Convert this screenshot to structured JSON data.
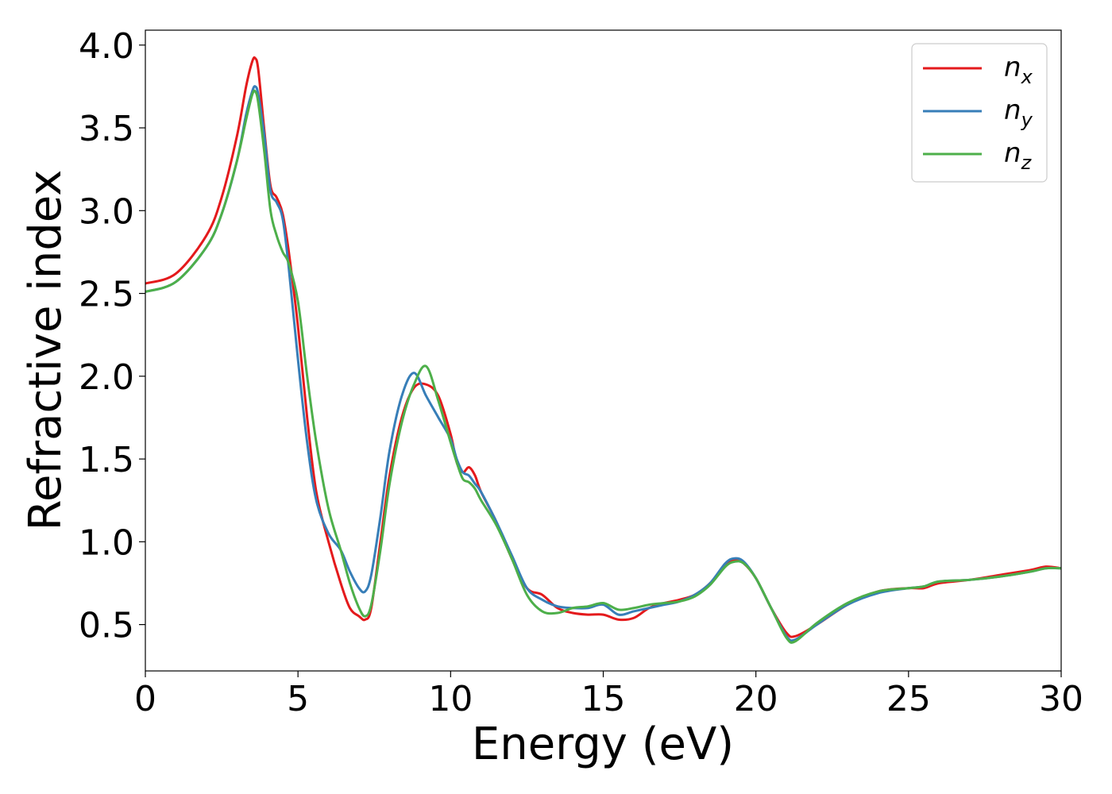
{
  "chart_data": {
    "type": "line",
    "xlabel": "Energy (eV)",
    "ylabel": "Refractive index",
    "xlim": [
      0,
      30
    ],
    "ylim": [
      0.22,
      4.09
    ],
    "xticks": [
      0,
      5,
      10,
      15,
      20,
      25,
      30
    ],
    "xtick_labels": [
      "0",
      "5",
      "10",
      "15",
      "20",
      "25",
      "30"
    ],
    "yticks": [
      0.5,
      1.0,
      1.5,
      2.0,
      2.5,
      3.0,
      3.5,
      4.0
    ],
    "ytick_labels": [
      "0.5",
      "1.0",
      "1.5",
      "2.0",
      "2.5",
      "3.0",
      "3.5",
      "4.0"
    ],
    "grid": false,
    "legend": {
      "position": "top-right"
    },
    "series": [
      {
        "name": "n",
        "sub": "x",
        "color": "#e41a1c",
        "x": [
          0,
          1,
          2,
          2.5,
          3,
          3.3,
          3.5,
          3.6,
          3.7,
          3.9,
          4.1,
          4.3,
          4.5,
          4.7,
          5.0,
          5.3,
          5.6,
          6.0,
          6.4,
          6.7,
          7.0,
          7.2,
          7.4,
          7.7,
          8.0,
          8.4,
          8.8,
          9.2,
          9.6,
          10.0,
          10.2,
          10.4,
          10.6,
          10.8,
          11.0,
          11.5,
          12.0,
          12.5,
          13.0,
          13.5,
          14.0,
          14.5,
          15.0,
          15.5,
          16.0,
          16.5,
          17.0,
          17.5,
          18.0,
          18.5,
          19.0,
          19.3,
          19.6,
          20.0,
          20.5,
          21.0,
          21.3,
          22.0,
          23.0,
          24.0,
          25.0,
          25.5,
          26.0,
          27.0,
          28.0,
          29.0,
          29.5,
          30.0
        ],
        "y": [
          2.56,
          2.62,
          2.85,
          3.08,
          3.45,
          3.75,
          3.9,
          3.92,
          3.85,
          3.48,
          3.15,
          3.08,
          2.98,
          2.75,
          2.3,
          1.75,
          1.3,
          1.0,
          0.75,
          0.6,
          0.55,
          0.53,
          0.6,
          1.0,
          1.4,
          1.75,
          1.93,
          1.95,
          1.88,
          1.65,
          1.48,
          1.42,
          1.45,
          1.4,
          1.3,
          1.12,
          0.9,
          0.72,
          0.68,
          0.6,
          0.57,
          0.56,
          0.56,
          0.53,
          0.54,
          0.6,
          0.63,
          0.65,
          0.68,
          0.75,
          0.86,
          0.89,
          0.87,
          0.78,
          0.6,
          0.45,
          0.43,
          0.5,
          0.62,
          0.7,
          0.72,
          0.72,
          0.75,
          0.77,
          0.8,
          0.83,
          0.85,
          0.84
        ]
      },
      {
        "name": "n",
        "sub": "y",
        "color": "#377eb8",
        "x": [
          0,
          1,
          2,
          2.5,
          3,
          3.3,
          3.5,
          3.6,
          3.7,
          3.9,
          4.1,
          4.3,
          4.5,
          4.7,
          5.0,
          5.3,
          5.6,
          6.0,
          6.4,
          6.7,
          7.0,
          7.2,
          7.4,
          7.7,
          8.0,
          8.4,
          8.8,
          9.2,
          9.6,
          10.0,
          10.2,
          10.4,
          10.6,
          10.8,
          11.0,
          11.5,
          12.0,
          12.5,
          13.0,
          13.5,
          14.0,
          14.5,
          15.0,
          15.5,
          16.0,
          16.5,
          17.0,
          17.5,
          18.0,
          18.5,
          19.0,
          19.3,
          19.6,
          20.0,
          20.5,
          21.0,
          21.3,
          22.0,
          23.0,
          24.0,
          25.0,
          25.5,
          26.0,
          27.0,
          28.0,
          29.0,
          29.5,
          30.0
        ],
        "y": [
          2.51,
          2.57,
          2.78,
          2.98,
          3.3,
          3.58,
          3.72,
          3.75,
          3.7,
          3.45,
          3.12,
          3.05,
          2.95,
          2.65,
          2.1,
          1.6,
          1.25,
          1.05,
          0.95,
          0.82,
          0.72,
          0.7,
          0.8,
          1.15,
          1.55,
          1.88,
          2.02,
          1.88,
          1.75,
          1.62,
          1.5,
          1.42,
          1.4,
          1.35,
          1.3,
          1.12,
          0.92,
          0.72,
          0.65,
          0.61,
          0.6,
          0.6,
          0.62,
          0.56,
          0.58,
          0.6,
          0.62,
          0.64,
          0.68,
          0.75,
          0.87,
          0.9,
          0.88,
          0.78,
          0.6,
          0.43,
          0.41,
          0.5,
          0.62,
          0.69,
          0.72,
          0.73,
          0.76,
          0.77,
          0.79,
          0.82,
          0.84,
          0.84
        ]
      },
      {
        "name": "n",
        "sub": "z",
        "color": "#4daf4a",
        "x": [
          0,
          1,
          2,
          2.5,
          3,
          3.3,
          3.5,
          3.6,
          3.7,
          3.9,
          4.1,
          4.3,
          4.5,
          4.7,
          5.0,
          5.3,
          5.6,
          6.0,
          6.4,
          6.7,
          7.0,
          7.2,
          7.4,
          7.7,
          8.0,
          8.4,
          8.8,
          9.2,
          9.6,
          10.0,
          10.2,
          10.4,
          10.6,
          10.8,
          11.0,
          11.5,
          12.0,
          12.5,
          13.0,
          13.5,
          14.0,
          14.5,
          15.0,
          15.5,
          16.0,
          16.5,
          17.0,
          17.5,
          18.0,
          18.5,
          19.0,
          19.3,
          19.6,
          20.0,
          20.5,
          21.0,
          21.3,
          22.0,
          23.0,
          24.0,
          25.0,
          25.5,
          26.0,
          27.0,
          28.0,
          29.0,
          29.5,
          30.0
        ],
        "y": [
          2.51,
          2.57,
          2.78,
          2.98,
          3.3,
          3.55,
          3.7,
          3.72,
          3.65,
          3.35,
          3.0,
          2.85,
          2.75,
          2.68,
          2.45,
          2.0,
          1.6,
          1.2,
          0.95,
          0.75,
          0.6,
          0.55,
          0.62,
          0.95,
          1.35,
          1.72,
          1.95,
          2.06,
          1.85,
          1.6,
          1.48,
          1.38,
          1.36,
          1.32,
          1.25,
          1.1,
          0.9,
          0.68,
          0.58,
          0.57,
          0.6,
          0.61,
          0.63,
          0.59,
          0.6,
          0.62,
          0.63,
          0.64,
          0.67,
          0.74,
          0.85,
          0.88,
          0.87,
          0.78,
          0.6,
          0.42,
          0.4,
          0.51,
          0.63,
          0.7,
          0.72,
          0.73,
          0.76,
          0.77,
          0.79,
          0.82,
          0.84,
          0.84
        ]
      }
    ]
  }
}
